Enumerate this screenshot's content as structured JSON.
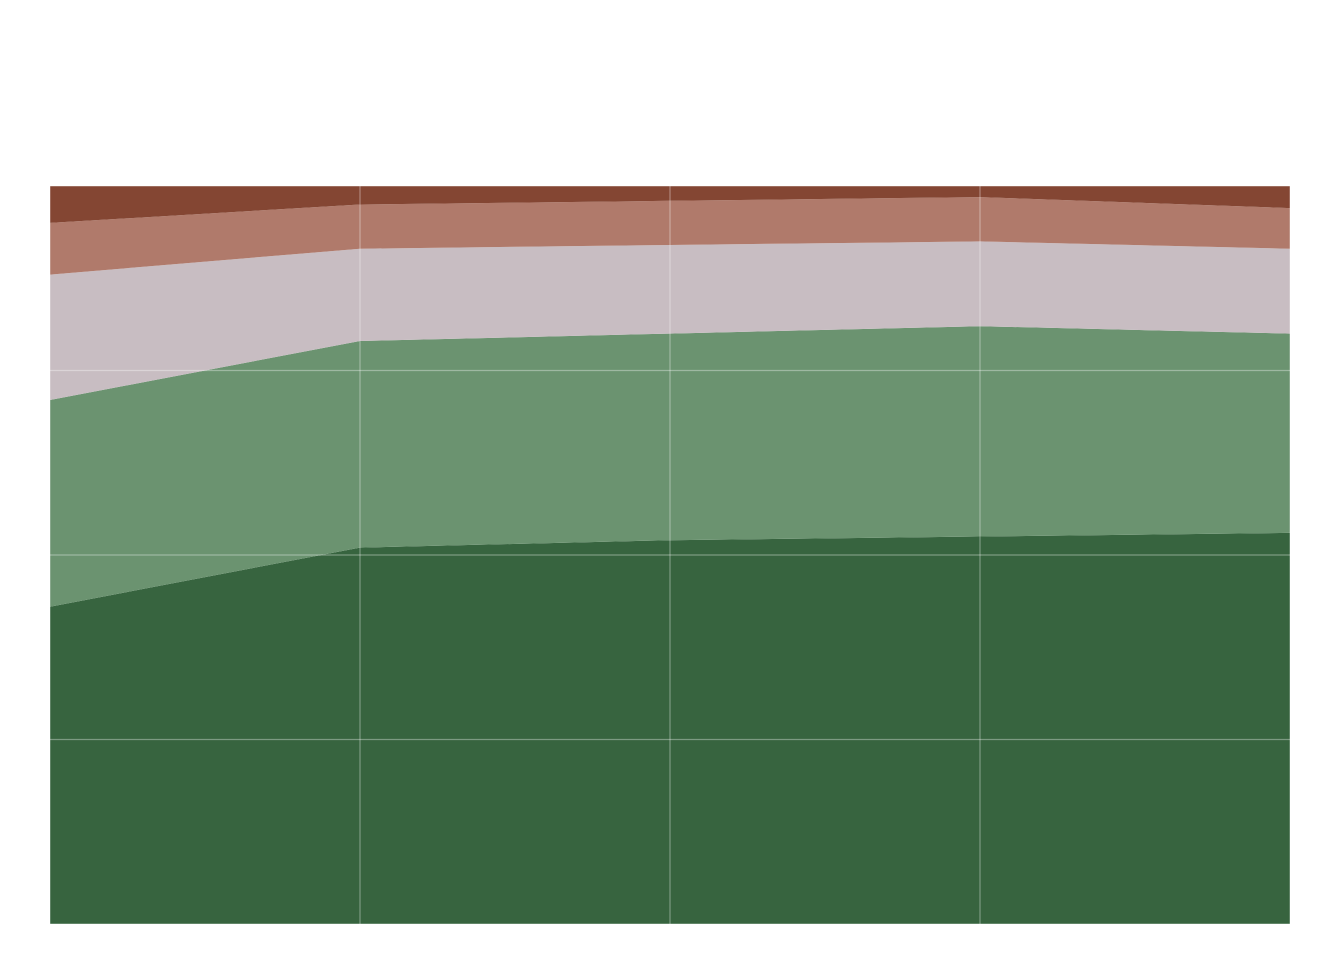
{
  "chart_data": {
    "type": "area",
    "stacked": true,
    "normalized": true,
    "title": "",
    "xlabel": "",
    "ylabel": "",
    "x": [
      0,
      1,
      2,
      3,
      4
    ],
    "ylim": [
      0,
      100
    ],
    "grid": true,
    "legend": "none",
    "series": [
      {
        "color": "#37643f",
        "values": [
          43,
          51,
          52,
          52.5,
          53
        ]
      },
      {
        "color": "#6b9370",
        "values": [
          28,
          28,
          28,
          28.5,
          27
        ]
      },
      {
        "color": "#c8bdc2",
        "values": [
          17,
          12.5,
          12,
          11.5,
          11.5
        ]
      },
      {
        "color": "#b07a6b",
        "values": [
          7,
          6,
          6,
          6,
          5.5
        ]
      },
      {
        "color": "#844633",
        "values": [
          5,
          2.5,
          2,
          1.5,
          3
        ]
      }
    ]
  }
}
